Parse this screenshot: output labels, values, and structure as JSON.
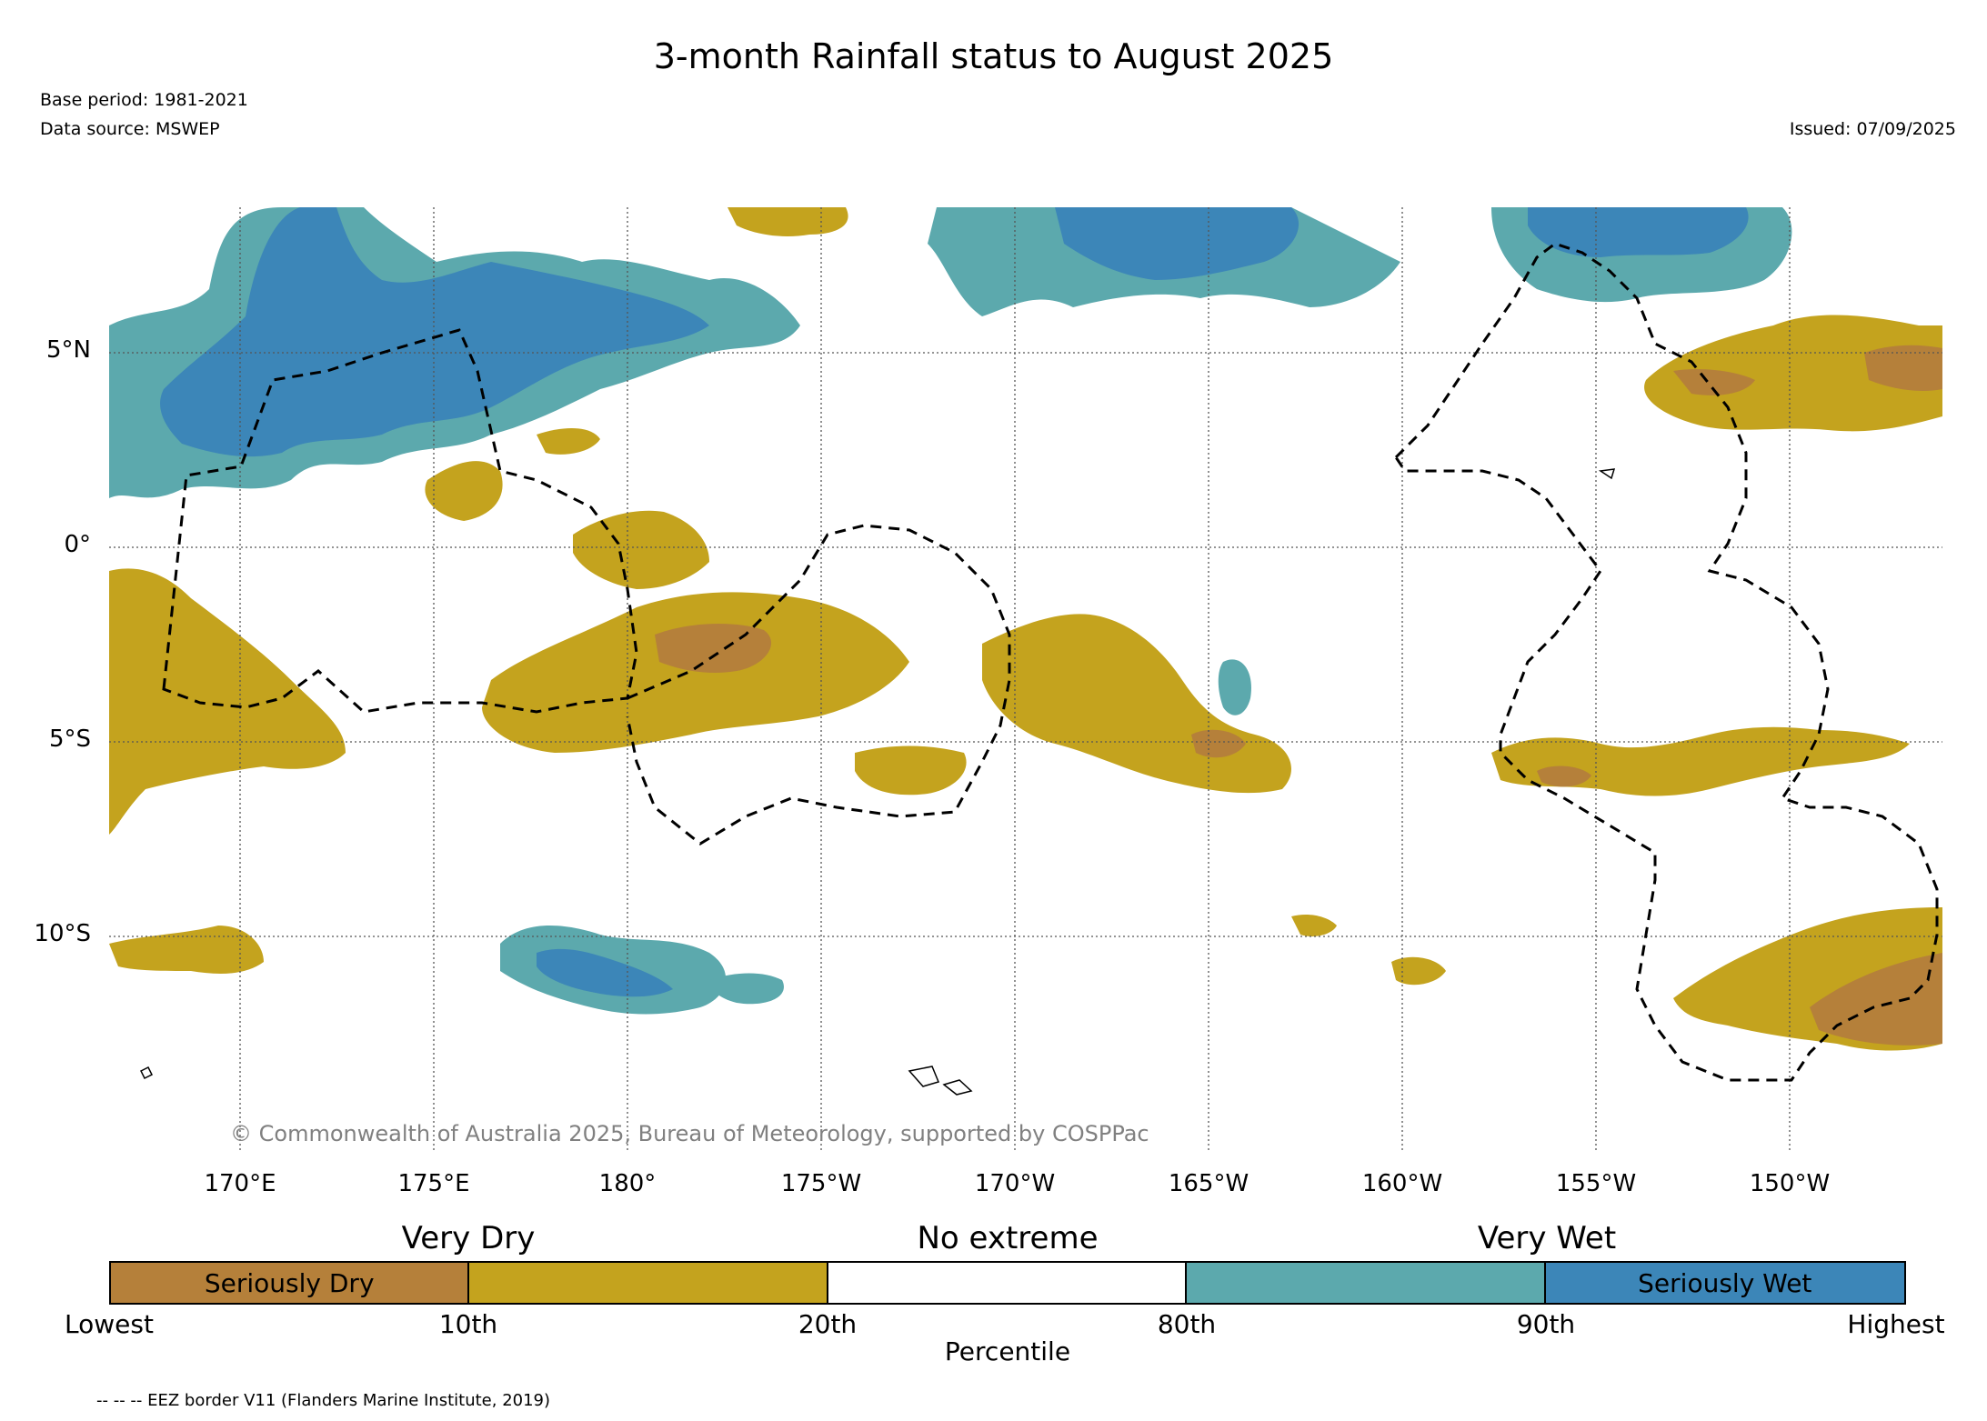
{
  "header": {
    "title": "3-month Rainfall status to August 2025",
    "base_period": "Base period: 1981-2021",
    "data_source": "Data source: MSWEP",
    "issued": "Issued: 07/09/2025"
  },
  "map": {
    "lat_labels": [
      "5°N",
      "0°",
      "5°S",
      "10°S"
    ],
    "lon_labels": [
      "170°E",
      "175°E",
      "180°",
      "175°W",
      "170°W",
      "165°W",
      "160°W",
      "155°W",
      "150°W"
    ],
    "copyright": "© Commonwealth of Australia 2025, Bureau of Meteorology, supported by COSPPac",
    "colors": {
      "seriously_dry": "#b5803a",
      "very_dry": "#c4a31e",
      "very_wet": "#5ca9ad",
      "seriously_wet": "#3c86b8",
      "no_extreme": "#ffffff"
    }
  },
  "legend": {
    "category_labels": [
      "Very Dry",
      "No extreme",
      "Very Wet"
    ],
    "segments": [
      {
        "label": "Seriously Dry",
        "color": "#b5803a"
      },
      {
        "label": "",
        "color": "#c4a31e"
      },
      {
        "label": "",
        "color": "#ffffff"
      },
      {
        "label": "",
        "color": "#5ca9ad"
      },
      {
        "label": "Seriously Wet",
        "color": "#3c86b8"
      }
    ],
    "ticks": [
      "Lowest",
      "10th",
      "20th",
      "80th",
      "90th",
      "Highest"
    ],
    "axis_label": "Percentile"
  },
  "footer": {
    "eez_note": "-- -- -- EEZ border V11 (Flanders Marine Institute, 2019)"
  }
}
